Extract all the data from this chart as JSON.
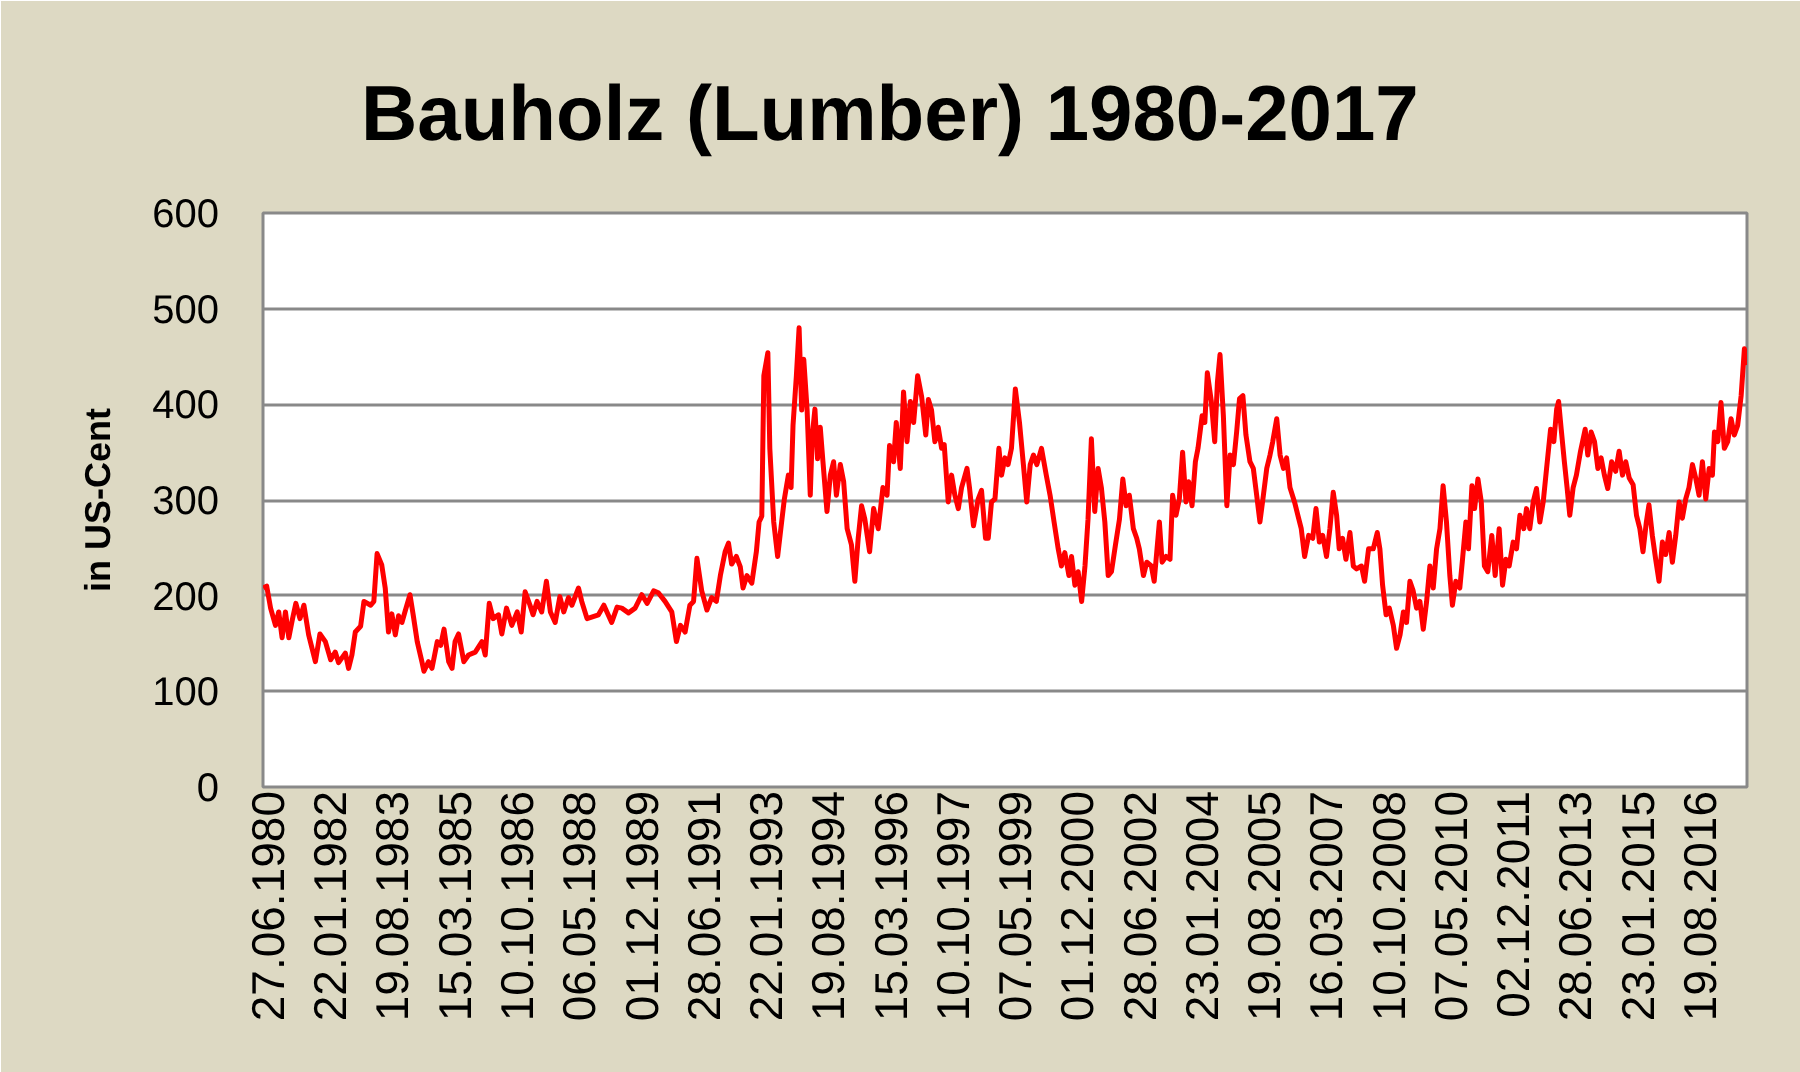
{
  "chart_data": {
    "type": "line",
    "title": "Bauholz (Lumber) 1980-2017",
    "ylabel": "in US-Cent",
    "x": [
      "1980-05-15",
      "1980-06-15",
      "1980-07-21",
      "1980-09-04",
      "1980-10-04",
      "1980-11-04",
      "1980-12-05",
      "1981-01-05",
      "1981-02-05",
      "1981-03-11",
      "1981-04-18",
      "1981-05-24",
      "1981-07-07",
      "1981-09-07",
      "1981-10-19",
      "1981-12-08",
      "1982-01-26",
      "1982-03-09",
      "1982-04-09",
      "1982-06-10",
      "1982-07-10",
      "1982-08-10",
      "1982-09-10",
      "1982-10-29",
      "1982-11-29",
      "1983-01-30",
      "1983-02-28",
      "1983-03-30",
      "1983-05-12",
      "1983-06-13",
      "1983-07-13",
      "1983-08-13",
      "1983-09-14",
      "1983-10-14",
      "1983-11-14",
      "1983-12-14",
      "1984-01-27",
      "1984-02-27",
      "1984-04-03",
      "1984-05-16",
      "1984-06-04",
      "1984-07-16",
      "1984-08-17",
      "1984-10-05",
      "1984-11-05",
      "1984-12-06",
      "1985-01-18",
      "1985-02-18",
      "1985-03-18",
      "1985-04-19",
      "1985-06-07",
      "1985-07-20",
      "1985-09-20",
      "1985-11-21",
      "1985-12-21",
      "1986-01-27",
      "1986-03-04",
      "1986-04-22",
      "1986-05-23",
      "1986-07-05",
      "1986-08-23",
      "1986-10-12",
      "1986-11-18",
      "1986-12-24",
      "1987-02-07",
      "1987-03-07",
      "1987-04-13",
      "1987-05-26",
      "1987-07-08",
      "1987-08-14",
      "1987-09-27",
      "1987-11-09",
      "1987-12-15",
      "1988-01-28",
      "1988-02-28",
      "1988-04-29",
      "1988-05-29",
      "1988-07-17",
      "1988-10-30",
      "1988-12-19",
      "1989-03-01",
      "1989-04-20",
      "1989-06-02",
      "1989-08-03",
      "1989-10-03",
      "1989-12-04",
      "1990-01-22",
      "1990-03-23",
      "1990-05-05",
      "1990-07-06",
      "1990-09-06",
      "1990-10-19",
      "1990-11-25",
      "1991-01-07",
      "1991-02-20",
      "1991-03-26",
      "1991-04-26",
      "1991-06-09",
      "1991-07-27",
      "1991-09-09",
      "1991-10-22",
      "1991-11-28",
      "1992-01-11",
      "1992-02-11",
      "1992-03-11",
      "1992-04-23",
      "1992-05-30",
      "1992-06-24",
      "1992-07-30",
      "1992-09-13",
      "1992-10-25",
      "1992-11-19",
      "1992-12-14",
      "1993-01-02",
      "1993-02-08",
      "1993-02-26",
      "1993-04-03",
      "1993-05-09",
      "1993-06-15",
      "1993-07-10",
      "1993-08-16",
      "1993-09-10",
      "1993-09-28",
      "1993-10-29",
      "1993-11-23",
      "1993-12-17",
      "1994-01-05",
      "1994-02-05",
      "1994-03-06",
      "1994-03-24",
      "1994-04-18",
      "1994-05-12",
      "1994-06-06",
      "1994-07-01",
      "1994-08-07",
      "1994-09-07",
      "1994-10-07",
      "1994-11-02",
      "1994-12-08",
      "1995-01-08",
      "1995-02-09",
      "1995-03-21",
      "1995-04-21",
      "1995-05-22",
      "1995-06-22",
      "1995-07-22",
      "1995-09-04",
      "1995-10-11",
      "1995-11-23",
      "1996-01-05",
      "1996-02-12",
      "1996-03-06",
      "1996-04-12",
      "1996-05-07",
      "1996-06-13",
      "1996-07-13",
      "1996-08-14",
      "1996-09-14",
      "1996-10-14",
      "1996-11-20",
      "1996-12-27",
      "1997-02-03",
      "1997-02-27",
      "1997-03-28",
      "1997-04-28",
      "1997-05-29",
      "1997-06-29",
      "1997-07-23",
      "1997-08-29",
      "1997-09-29",
      "1997-10-29",
      "1997-11-30",
      "1997-12-30",
      "1998-02-18",
      "1998-03-13",
      "1998-04-19",
      "1998-06-01",
      "1998-07-02",
      "1998-08-08",
      "1998-09-02",
      "1998-10-02",
      "1998-11-03",
      "1998-12-09",
      "1999-01-03",
      "1999-02-03",
      "1999-03-04",
      "1999-04-04",
      "1999-05-10",
      "1999-06-17",
      "1999-07-23",
      "1999-08-23",
      "1999-09-24",
      "1999-10-24",
      "1999-11-24",
      "2000-01-06",
      "2000-02-19",
      "2000-03-25",
      "2000-05-01",
      "2000-06-08",
      "2000-07-08",
      "2000-08-08",
      "2000-09-15",
      "2000-10-09",
      "2000-11-09",
      "2000-12-09",
      "2001-01-10",
      "2001-02-10",
      "2001-03-10",
      "2001-04-10",
      "2001-05-11",
      "2001-06-11",
      "2001-07-11",
      "2001-08-12",
      "2001-09-12",
      "2001-10-12",
      "2001-11-18",
      "2001-12-25",
      "2002-01-25",
      "2002-02-24",
      "2002-03-26",
      "2002-05-02",
      "2002-06-02",
      "2002-06-26",
      "2002-08-03",
      "2002-09-03",
      "2002-10-15",
      "2002-11-10",
      "2002-12-04",
      "2002-12-28",
      "2003-01-22",
      "2003-02-28",
      "2003-04-05",
      "2003-04-29",
      "2003-05-30",
      "2003-06-30",
      "2003-07-30",
      "2003-08-30",
      "2003-09-24",
      "2003-10-25",
      "2003-11-25",
      "2003-12-19",
      "2004-01-26",
      "2004-02-20",
      "2004-03-14",
      "2004-04-20",
      "2004-05-21",
      "2004-06-15",
      "2004-07-09",
      "2004-08-09",
      "2004-09-10",
      "2004-10-10",
      "2004-11-10",
      "2004-12-10",
      "2005-01-05",
      "2005-02-05",
      "2005-03-05",
      "2005-04-11",
      "2005-05-12",
      "2005-06-12",
      "2005-07-12",
      "2005-08-13",
      "2005-09-13",
      "2005-10-13",
      "2005-11-07",
      "2005-12-14",
      "2006-01-14",
      "2006-02-14",
      "2006-03-15",
      "2006-04-15",
      "2006-05-27",
      "2006-06-27",
      "2006-07-28",
      "2006-08-28",
      "2006-10-04",
      "2006-11-11",
      "2006-12-11",
      "2007-01-11",
      "2007-02-11",
      "2007-03-18",
      "2007-04-18",
      "2007-05-19",
      "2007-06-19",
      "2007-07-13",
      "2007-08-13",
      "2007-09-13",
      "2007-10-20",
      "2007-11-20",
      "2007-12-20",
      "2008-02-03",
      "2008-03-03",
      "2008-04-09",
      "2008-05-22",
      "2008-06-28",
      "2008-07-22",
      "2008-08-16",
      "2008-09-17",
      "2008-10-17",
      "2008-11-23",
      "2008-12-23",
      "2009-01-24",
      "2009-02-24",
      "2009-03-25",
      "2009-04-25",
      "2009-05-25",
      "2009-06-25",
      "2009-07-26",
      "2009-08-26",
      "2009-09-26",
      "2009-10-26",
      "2009-11-26",
      "2009-12-27",
      "2010-01-27",
      "2010-02-25",
      "2010-03-28",
      "2010-04-28",
      "2010-05-22",
      "2010-06-22",
      "2010-07-29",
      "2010-08-23",
      "2010-09-23",
      "2010-10-17",
      "2010-11-18",
      "2010-12-12",
      "2011-01-12",
      "2011-02-12",
      "2011-03-13",
      "2011-04-13",
      "2011-05-20",
      "2011-06-20",
      "2011-07-27",
      "2011-08-27",
      "2011-09-27",
      "2011-10-27",
      "2011-12-03",
      "2012-01-03",
      "2012-02-03",
      "2012-03-10",
      "2012-04-04",
      "2012-05-04",
      "2012-06-05",
      "2012-07-05",
      "2012-08-05",
      "2012-09-05",
      "2012-10-06",
      "2012-11-12",
      "2012-12-12",
      "2013-01-07",
      "2013-01-25",
      "2013-02-18",
      "2013-03-19",
      "2013-04-13",
      "2013-05-08",
      "2013-06-08",
      "2013-07-08",
      "2013-08-15",
      "2013-09-27",
      "2013-10-21",
      "2013-11-21",
      "2013-12-22",
      "2014-01-22",
      "2014-02-21",
      "2014-03-23",
      "2014-04-23",
      "2014-05-29",
      "2014-07-05",
      "2014-08-06",
      "2014-09-06",
      "2014-10-06",
      "2014-11-07",
      "2014-12-13",
      "2015-01-13",
      "2015-02-13",
      "2015-03-14",
      "2015-04-14",
      "2015-05-08",
      "2015-06-08",
      "2015-07-09",
      "2015-08-09",
      "2015-09-09",
      "2015-10-09",
      "2015-11-10",
      "2015-12-10",
      "2016-01-10",
      "2016-02-10",
      "2016-03-11",
      "2016-04-11",
      "2016-05-11",
      "2016-06-12",
      "2016-07-12",
      "2016-08-12",
      "2016-09-12",
      "2016-10-13",
      "2016-11-13",
      "2016-12-13",
      "2017-01-01",
      "2017-02-01",
      "2017-03-02",
      "2017-04-02",
      "2017-05-03",
      "2017-06-03",
      "2017-07-03",
      "2017-08-03",
      "2017-09-04",
      "2017-10-04",
      "2017-10-22"
    ],
    "series": [
      {
        "color": "#ff0000",
        "values": [
          208,
          210,
          187,
          169,
          183,
          156,
          183,
          156,
          174,
          192,
          176,
          190,
          159,
          131,
          160,
          152,
          133,
          141,
          130,
          140,
          124,
          138,
          162,
          168,
          194,
          190,
          194,
          244,
          232,
          208,
          162,
          181,
          159,
          179,
          172,
          184,
          201,
          179,
          152,
          131,
          121,
          131,
          124,
          152,
          148,
          165,
          131,
          124,
          152,
          160,
          131,
          138,
          141,
          152,
          138,
          192,
          176,
          180,
          160,
          187,
          169,
          183,
          162,
          204,
          190,
          180,
          194,
          183,
          215,
          183,
          172,
          199,
          183,
          198,
          190,
          208,
          194,
          176,
          180,
          190,
          172,
          188,
          187,
          182,
          187,
          201,
          192,
          205,
          203,
          194,
          183,
          152,
          169,
          162,
          190,
          194,
          239,
          205,
          185,
          198,
          194,
          221,
          246,
          255,
          233,
          241,
          230,
          208,
          221,
          213,
          246,
          277,
          283,
          430,
          454,
          354,
          277,
          241,
          277,
          301,
          326,
          313,
          378,
          430,
          480,
          394,
          447,
          394,
          305,
          367,
          395,
          343,
          376,
          340,
          288,
          326,
          340,
          305,
          337,
          319,
          270,
          253,
          215,
          260,
          294,
          280,
          246,
          291,
          270,
          313,
          305,
          357,
          340,
          381,
          333,
          413,
          361,
          403,
          381,
          430,
          408,
          368,
          405,
          394,
          361,
          376,
          354,
          358,
          298,
          326,
          305,
          291,
          313,
          333,
          313,
          273,
          301,
          310,
          260,
          260,
          298,
          301,
          354,
          326,
          344,
          337,
          354,
          416,
          381,
          337,
          298,
          337,
          347,
          337,
          354,
          326,
          305,
          277,
          249,
          231,
          245,
          221,
          241,
          211,
          225,
          194,
          231,
          280,
          364,
          288,
          333,
          313,
          277,
          221,
          225,
          253,
          280,
          322,
          294,
          305,
          270,
          260,
          249,
          221,
          235,
          231,
          215,
          246,
          277,
          235,
          241,
          238,
          305,
          284,
          301,
          350,
          298,
          319,
          294,
          340,
          354,
          388,
          381,
          433,
          403,
          361,
          423,
          452,
          388,
          294,
          347,
          337,
          372,
          406,
          409,
          368,
          340,
          333,
          305,
          277,
          305,
          333,
          347,
          361,
          385,
          347,
          333,
          344,
          313,
          298,
          284,
          270,
          241,
          263,
          260,
          291,
          256,
          263,
          241,
          270,
          308,
          284,
          249,
          260,
          238,
          266,
          231,
          228,
          231,
          215,
          249,
          249,
          266,
          249,
          211,
          180,
          187,
          169,
          145,
          159,
          183,
          172,
          215,
          205,
          187,
          194,
          165,
          194,
          231,
          208,
          249,
          270,
          315,
          277,
          221,
          190,
          215,
          208,
          238,
          277,
          249,
          315,
          291,
          322,
          298,
          231,
          225,
          263,
          221,
          270,
          211,
          238,
          231,
          256,
          249,
          284,
          270,
          291,
          270,
          298,
          312,
          277,
          298,
          333,
          374,
          361,
          395,
          403,
          374,
          340,
          313,
          284,
          313,
          326,
          351,
          374,
          347,
          371,
          361,
          333,
          344,
          326,
          312,
          340,
          330,
          351,
          326,
          340,
          323,
          316,
          284,
          270,
          246,
          277,
          295,
          263,
          238,
          215,
          256,
          243,
          266,
          235,
          263,
          298,
          281,
          301,
          313,
          337,
          323,
          305,
          340,
          301,
          333,
          326,
          371,
          361,
          402,
          354,
          361,
          385,
          368,
          378,
          409,
          458,
          441
        ]
      }
    ],
    "xlim": [
      "1980-05-12",
      "2017-10-28"
    ],
    "xticks": [
      {
        "value": "1980-06-27",
        "label": "27.06.1980"
      },
      {
        "value": "1982-01-22",
        "label": "22.01.1982"
      },
      {
        "value": "1983-08-19",
        "label": "19.08.1983"
      },
      {
        "value": "1985-03-15",
        "label": "15.03.1985"
      },
      {
        "value": "1986-10-10",
        "label": "10.10.1986"
      },
      {
        "value": "1988-05-06",
        "label": "06.05.1988"
      },
      {
        "value": "1989-12-01",
        "label": "01.12.1989"
      },
      {
        "value": "1991-06-28",
        "label": "28.06.1991"
      },
      {
        "value": "1993-01-22",
        "label": "22.01.1993"
      },
      {
        "value": "1994-08-19",
        "label": "19.08.1994"
      },
      {
        "value": "1996-03-15",
        "label": "15.03.1996"
      },
      {
        "value": "1997-10-10",
        "label": "10.10.1997"
      },
      {
        "value": "1999-05-07",
        "label": "07.05.1999"
      },
      {
        "value": "2000-12-01",
        "label": "01.12.2000"
      },
      {
        "value": "2002-06-28",
        "label": "28.06.2002"
      },
      {
        "value": "2004-01-23",
        "label": "23.01.2004"
      },
      {
        "value": "2005-08-19",
        "label": "19.08.2005"
      },
      {
        "value": "2007-03-16",
        "label": "16.03.2007"
      },
      {
        "value": "2008-10-10",
        "label": "10.10.2008"
      },
      {
        "value": "2010-05-07",
        "label": "07.05.2010"
      },
      {
        "value": "2011-12-02",
        "label": "02.12.2011"
      },
      {
        "value": "2013-06-28",
        "label": "28.06.2013"
      },
      {
        "value": "2015-01-23",
        "label": "23.01.2015"
      },
      {
        "value": "2016-08-19",
        "label": "19.08.2016"
      }
    ],
    "ylim": [
      0,
      600
    ],
    "yticks": [
      0,
      100,
      200,
      300,
      400,
      500,
      600
    ],
    "grid": "y",
    "line_style": "solid"
  }
}
